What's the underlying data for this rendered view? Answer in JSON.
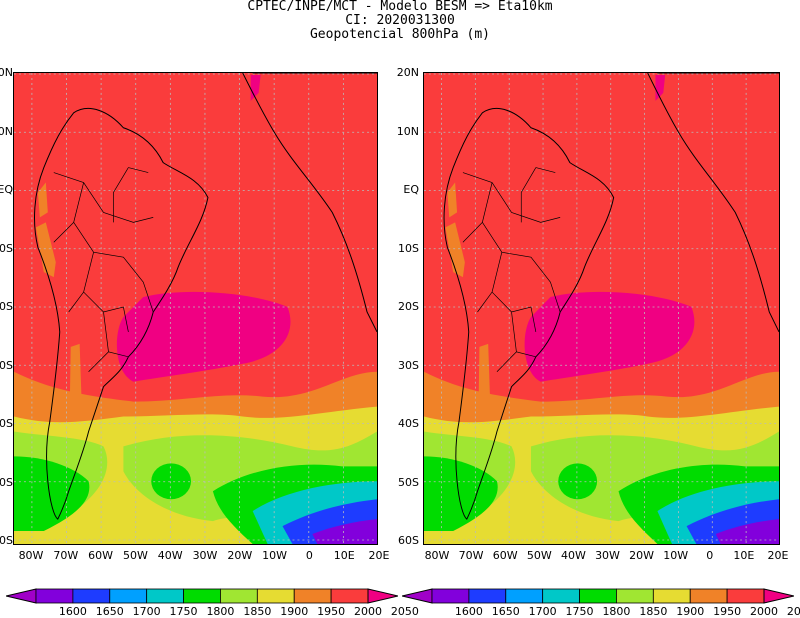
{
  "title": {
    "line1": "CPTEC/INPE/MCT -  Modelo BESM => Eta10km",
    "line2": "CI: 2020031300",
    "line3": "Geopotencial 800hPa (m)"
  },
  "map": {
    "lat_ticks": [
      "20N",
      "10N",
      "EQ",
      "10S",
      "20S",
      "30S",
      "40S",
      "50S",
      "60S"
    ],
    "lon_ticks": [
      "80W",
      "70W",
      "60W",
      "50W",
      "40W",
      "30W",
      "20W",
      "10W",
      "0",
      "10E",
      "20E"
    ],
    "left_lat_ticks_visible": [
      "0N",
      "0N",
      "EQ",
      "0S",
      "0S",
      "0S",
      "0S",
      "0S",
      "0S"
    ]
  },
  "colorbar": {
    "levels": [
      "1600",
      "1650",
      "1700",
      "1750",
      "1800",
      "1850",
      "1900",
      "1950",
      "2000",
      "2050"
    ],
    "colors": [
      "#a000c8",
      "#8200dc",
      "#1e3cff",
      "#00a0ff",
      "#00c8c8",
      "#00dc00",
      "#a0e632",
      "#e6dc32",
      "#f08228",
      "#fa3c3c",
      "#f00082"
    ]
  }
}
